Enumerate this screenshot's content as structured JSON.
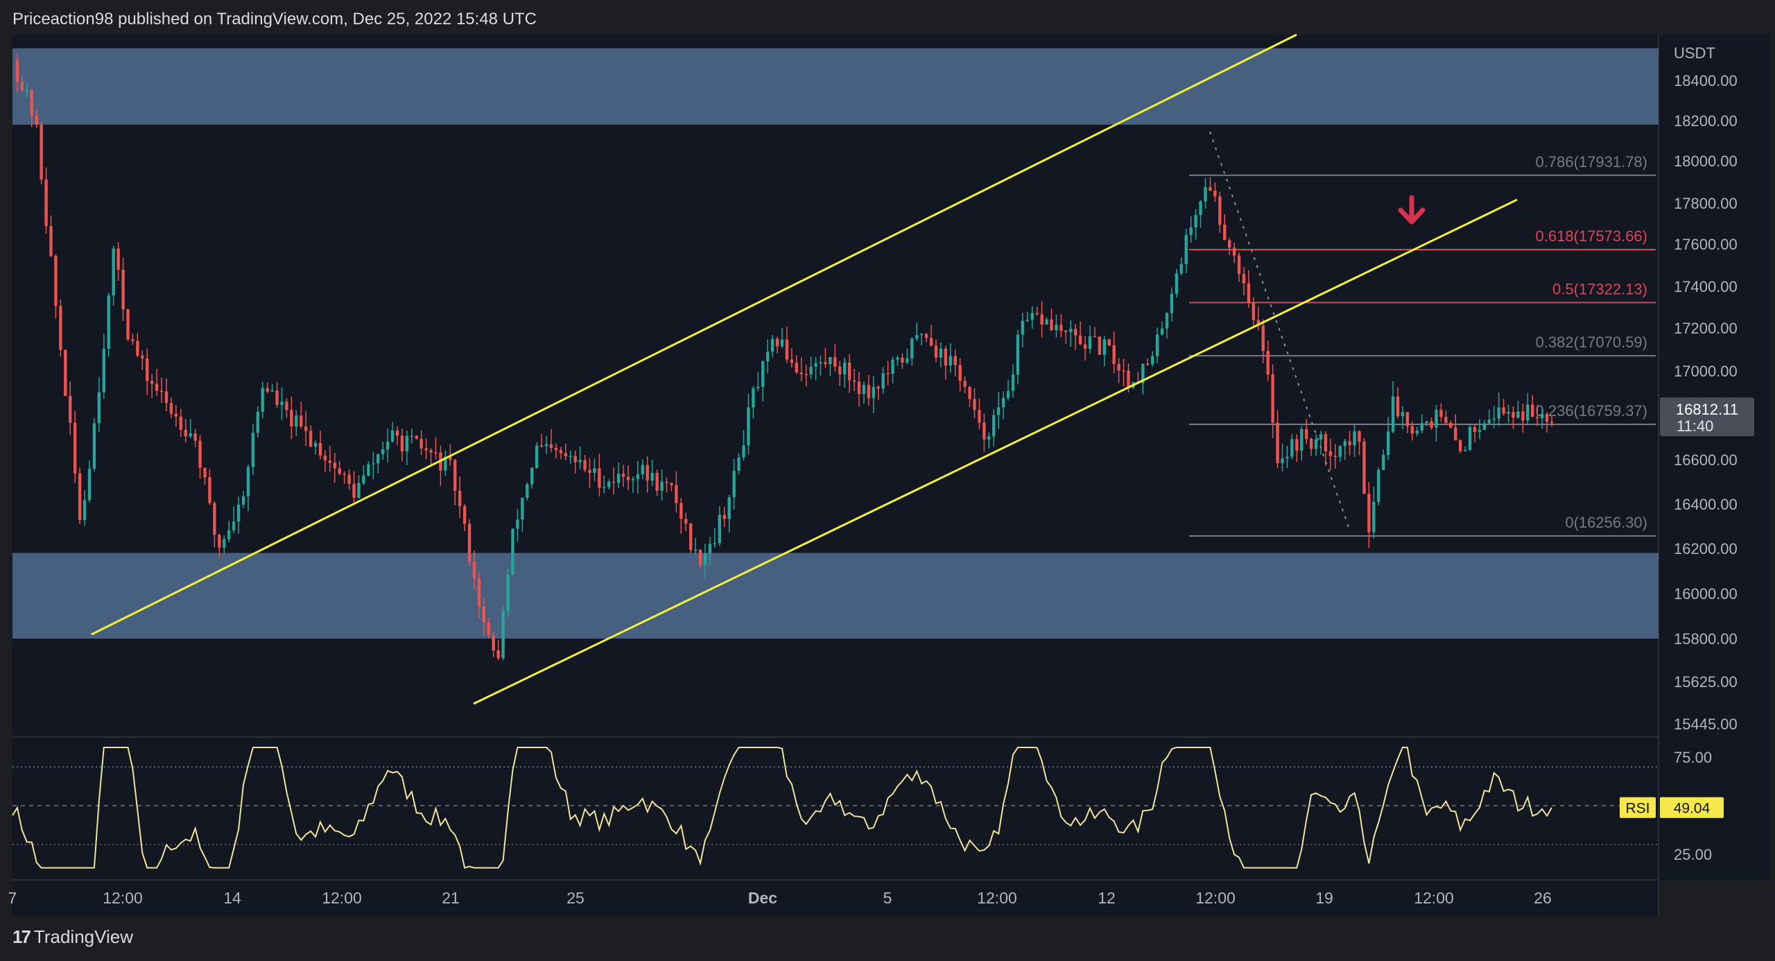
{
  "header": {
    "text": "Priceaction98 published on TradingView.com, Dec 25, 2022 15:48 UTC"
  },
  "footer": {
    "logo": "17",
    "brand": "TradingView"
  },
  "price_pane": {
    "currency": "USDT",
    "current_price": "16812.11",
    "countdown": "11:40"
  },
  "rsi_pane": {
    "label": "RSI",
    "value": "49.04"
  },
  "colors": {
    "background": "#131722",
    "up": "#26a69a",
    "down": "#ef5350",
    "zone": "#4a6485",
    "channel": "#f2f23a",
    "fib_neutral": "#787b86",
    "fib_red": "#e0435a",
    "rsi_line": "#efe49a"
  },
  "chart_data": {
    "type": "candlestick",
    "title": "",
    "ylabel": "",
    "price_axis": {
      "ticks": [
        18400,
        18200,
        18000,
        17800,
        17600,
        17400,
        17200,
        17000,
        16600,
        16400,
        16200,
        16000,
        15800,
        15625,
        15445
      ],
      "tick_labels": [
        "18400.00",
        "18200.00",
        "18000.00",
        "17800.00",
        "17600.00",
        "17400.00",
        "17200.00",
        "17000.00",
        "16600.00",
        "16400.00",
        "16200.00",
        "16000.00",
        "15800.00",
        "15625.00",
        "15445.00"
      ]
    },
    "time_axis": {
      "labels": [
        "7",
        "12:00",
        "14",
        "12:00",
        "21",
        "25",
        "Dec",
        "5",
        "12:00",
        "12",
        "12:00",
        "19",
        "12:00",
        "26"
      ]
    },
    "zones": [
      {
        "name": "supply",
        "from": 18180,
        "to": 18560
      },
      {
        "name": "demand",
        "from": 15800,
        "to": 16180
      }
    ],
    "channel_lines": [
      {
        "name": "upper",
        "from": {
          "t": 0.1,
          "price": 15835
        },
        "to": {
          "t": 1.3,
          "price": 18620
        }
      },
      {
        "name": "lower",
        "from": {
          "t": 0.38,
          "price": 15500
        },
        "to": {
          "t": 1.7,
          "price": 17810
        }
      }
    ],
    "fib_levels": [
      {
        "ratio": "0.786",
        "price": "17931.78",
        "label": "0.786(17931.78)",
        "emphasis": false
      },
      {
        "ratio": "0.618",
        "price": "17573.66",
        "label": "0.618(17573.66)",
        "emphasis": true
      },
      {
        "ratio": "0.5",
        "price": "17322.13",
        "label": "0.5(17322.13)",
        "emphasis": true
      },
      {
        "ratio": "0.382",
        "price": "17070.59",
        "label": "0.382(17070.59)",
        "emphasis": false
      },
      {
        "ratio": "0.236",
        "price": "16759.37",
        "label": "0.236(16759.37)",
        "emphasis": false
      },
      {
        "ratio": "0",
        "price": "16256.30",
        "label": "0(16256.30)",
        "emphasis": false
      }
    ],
    "price_path": [
      [
        0.0,
        18500
      ],
      [
        0.02,
        18200
      ],
      [
        0.04,
        17200
      ],
      [
        0.06,
        16300
      ],
      [
        0.075,
        16900
      ],
      [
        0.09,
        17600
      ],
      [
        0.1,
        17200
      ],
      [
        0.115,
        17000
      ],
      [
        0.135,
        16850
      ],
      [
        0.16,
        16700
      ],
      [
        0.18,
        16200
      ],
      [
        0.2,
        16400
      ],
      [
        0.22,
        16950
      ],
      [
        0.24,
        16800
      ],
      [
        0.27,
        16650
      ],
      [
        0.3,
        16450
      ],
      [
        0.33,
        16700
      ],
      [
        0.36,
        16650
      ],
      [
        0.385,
        16550
      ],
      [
        0.4,
        16200
      ],
      [
        0.415,
        15820
      ],
      [
        0.425,
        15700
      ],
      [
        0.44,
        16300
      ],
      [
        0.46,
        16650
      ],
      [
        0.49,
        16600
      ],
      [
        0.52,
        16500
      ],
      [
        0.55,
        16550
      ],
      [
        0.58,
        16450
      ],
      [
        0.6,
        16150
      ],
      [
        0.615,
        16250
      ],
      [
        0.63,
        16450
      ],
      [
        0.65,
        16900
      ],
      [
        0.67,
        17150
      ],
      [
        0.69,
        17000
      ],
      [
        0.72,
        17050
      ],
      [
        0.75,
        16900
      ],
      [
        0.78,
        17050
      ],
      [
        0.8,
        17200
      ],
      [
        0.81,
        17100
      ],
      [
        0.83,
        17000
      ],
      [
        0.85,
        16700
      ],
      [
        0.87,
        16850
      ],
      [
        0.885,
        17200
      ],
      [
        0.9,
        17250
      ],
      [
        0.93,
        17150
      ],
      [
        0.96,
        17100
      ],
      [
        0.98,
        16950
      ],
      [
        1.0,
        17050
      ],
      [
        1.02,
        17450
      ],
      [
        1.04,
        17800
      ],
      [
        1.05,
        17900
      ],
      [
        1.06,
        17700
      ],
      [
        1.075,
        17500
      ],
      [
        1.09,
        17250
      ],
      [
        1.1,
        17000
      ],
      [
        1.11,
        16600
      ],
      [
        1.13,
        16700
      ],
      [
        1.16,
        16650
      ],
      [
        1.18,
        16700
      ],
      [
        1.19,
        16300
      ],
      [
        1.2,
        16600
      ],
      [
        1.21,
        16850
      ],
      [
        1.23,
        16750
      ],
      [
        1.25,
        16800
      ],
      [
        1.27,
        16650
      ],
      [
        1.29,
        16800
      ],
      [
        1.31,
        16820
      ],
      [
        1.33,
        16810
      ],
      [
        1.35,
        16812
      ]
    ],
    "rsi": {
      "range": [
        0,
        100
      ],
      "levels": [
        70,
        50,
        30
      ],
      "tick_labels": [
        "75.00",
        "25.00"
      ],
      "current": 49.04
    }
  }
}
